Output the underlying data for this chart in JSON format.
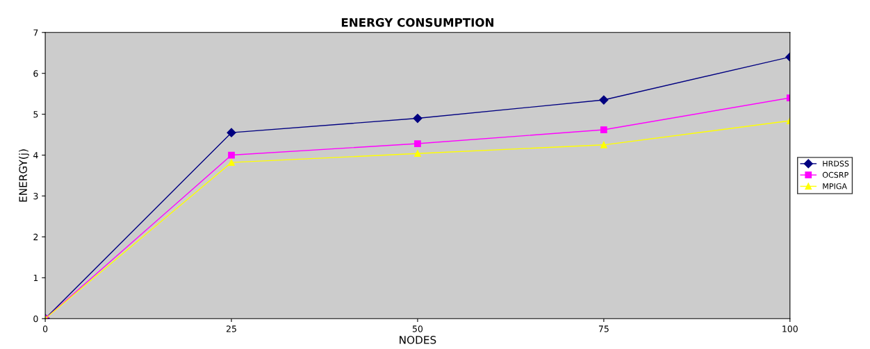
{
  "chart_data": {
    "type": "line",
    "title": "ENERGY CONSUMPTION",
    "xlabel": "NODES",
    "ylabel": "ENERGY(j)",
    "x": [
      0,
      25,
      50,
      75,
      100
    ],
    "series": [
      {
        "name": "HRDSS",
        "color": "#000080",
        "marker": "diamond",
        "values": [
          0,
          4.55,
          4.9,
          5.35,
          6.4
        ]
      },
      {
        "name": "OCSRP",
        "color": "#ff00ff",
        "marker": "square",
        "values": [
          0,
          4.0,
          4.28,
          4.62,
          5.4
        ]
      },
      {
        "name": "MPIGA",
        "color": "#ffff00",
        "marker": "triangle",
        "values": [
          0,
          3.82,
          4.04,
          4.25,
          4.84
        ]
      }
    ],
    "xlim": [
      0,
      100
    ],
    "ylim": [
      0,
      7
    ],
    "xticks": [
      0,
      25,
      50,
      75,
      100
    ],
    "yticks": [
      0,
      1,
      2,
      3,
      4,
      5,
      6,
      7
    ],
    "grid": false,
    "legend": "right",
    "line_style": "solid"
  }
}
